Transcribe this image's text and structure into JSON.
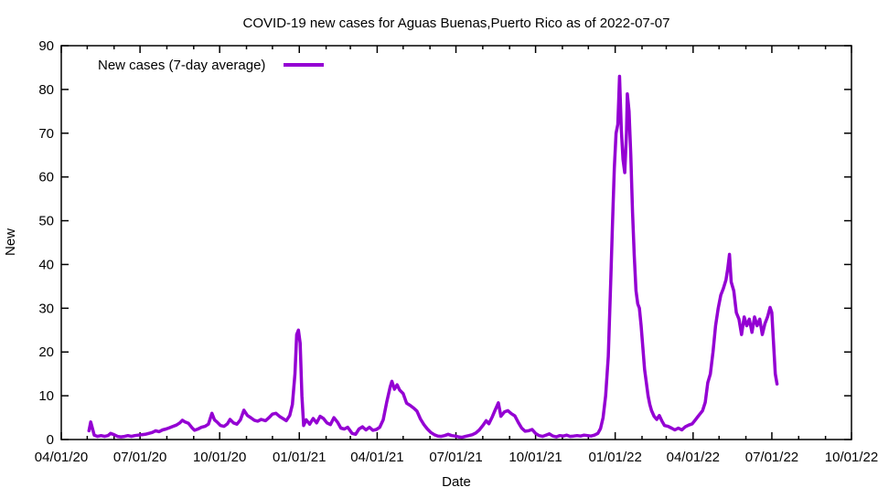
{
  "chart_data": {
    "type": "line",
    "title": "COVID-19 new cases for Aguas Buenas,Puerto Rico as of 2022-07-07",
    "xlabel": "Date",
    "ylabel": "New",
    "xlim": [
      "2020-04-01",
      "2022-10-01"
    ],
    "ylim": [
      0,
      90
    ],
    "grid": false,
    "legend_position": "top-left-inside",
    "x_tick_labels": [
      "04/01/20",
      "07/01/20",
      "10/01/20",
      "01/01/21",
      "04/01/21",
      "07/01/21",
      "10/01/21",
      "01/01/22",
      "04/01/22",
      "07/01/22",
      "10/01/22"
    ],
    "x_tick_dates": [
      "2020-04-01",
      "2020-07-01",
      "2020-10-01",
      "2021-01-01",
      "2021-04-01",
      "2021-07-01",
      "2021-10-01",
      "2022-01-01",
      "2022-04-01",
      "2022-07-01",
      "2022-10-01"
    ],
    "x_minor_tick_unit": "month",
    "y_ticks": [
      0,
      10,
      20,
      30,
      40,
      50,
      60,
      70,
      80,
      90
    ],
    "series": [
      {
        "name": "New cases (7-day average)",
        "color": "#9400D3",
        "points": [
          [
            "2020-05-03",
            2
          ],
          [
            "2020-05-05",
            4
          ],
          [
            "2020-05-07",
            2.5
          ],
          [
            "2020-05-09",
            1
          ],
          [
            "2020-05-13",
            0.7
          ],
          [
            "2020-05-17",
            0.9
          ],
          [
            "2020-05-21",
            0.7
          ],
          [
            "2020-05-25",
            0.9
          ],
          [
            "2020-05-28",
            1.4
          ],
          [
            "2020-06-01",
            1.1
          ],
          [
            "2020-06-05",
            0.7
          ],
          [
            "2020-06-09",
            0.6
          ],
          [
            "2020-06-13",
            0.7
          ],
          [
            "2020-06-17",
            0.9
          ],
          [
            "2020-06-21",
            0.7
          ],
          [
            "2020-06-25",
            0.9
          ],
          [
            "2020-06-29",
            1.0
          ],
          [
            "2020-07-03",
            1.1
          ],
          [
            "2020-07-07",
            1.2
          ],
          [
            "2020-07-11",
            1.4
          ],
          [
            "2020-07-15",
            1.6
          ],
          [
            "2020-07-19",
            2.0
          ],
          [
            "2020-07-23",
            1.8
          ],
          [
            "2020-07-27",
            2.2
          ],
          [
            "2020-07-31",
            2.4
          ],
          [
            "2020-08-04",
            2.7
          ],
          [
            "2020-08-08",
            3.0
          ],
          [
            "2020-08-12",
            3.3
          ],
          [
            "2020-08-16",
            3.8
          ],
          [
            "2020-08-19",
            4.4
          ],
          [
            "2020-08-22",
            4.0
          ],
          [
            "2020-08-26",
            3.7
          ],
          [
            "2020-08-30",
            2.7
          ],
          [
            "2020-09-02",
            2.1
          ],
          [
            "2020-09-06",
            2.4
          ],
          [
            "2020-09-10",
            2.8
          ],
          [
            "2020-09-14",
            3.0
          ],
          [
            "2020-09-18",
            3.5
          ],
          [
            "2020-09-22",
            6.0
          ],
          [
            "2020-09-25",
            4.5
          ],
          [
            "2020-09-28",
            4.0
          ],
          [
            "2020-10-02",
            3.2
          ],
          [
            "2020-10-06",
            3.0
          ],
          [
            "2020-10-10",
            3.6
          ],
          [
            "2020-10-13",
            4.6
          ],
          [
            "2020-10-17",
            3.8
          ],
          [
            "2020-10-21",
            3.5
          ],
          [
            "2020-10-25",
            4.5
          ],
          [
            "2020-10-29",
            6.7
          ],
          [
            "2020-11-02",
            5.5
          ],
          [
            "2020-11-06",
            5.0
          ],
          [
            "2020-11-10",
            4.4
          ],
          [
            "2020-11-14",
            4.2
          ],
          [
            "2020-11-18",
            4.6
          ],
          [
            "2020-11-23",
            4.3
          ],
          [
            "2020-11-27",
            5.0
          ],
          [
            "2020-12-01",
            5.8
          ],
          [
            "2020-12-05",
            6.0
          ],
          [
            "2020-12-09",
            5.3
          ],
          [
            "2020-12-13",
            4.8
          ],
          [
            "2020-12-17",
            4.3
          ],
          [
            "2020-12-21",
            5.5
          ],
          [
            "2020-12-24",
            8
          ],
          [
            "2020-12-27",
            15
          ],
          [
            "2020-12-29",
            24
          ],
          [
            "2020-12-31",
            25
          ],
          [
            "2021-01-02",
            22
          ],
          [
            "2021-01-04",
            10
          ],
          [
            "2021-01-06",
            3.2
          ],
          [
            "2021-01-09",
            4.5
          ],
          [
            "2021-01-13",
            3.5
          ],
          [
            "2021-01-17",
            4.8
          ],
          [
            "2021-01-21",
            3.8
          ],
          [
            "2021-01-25",
            5.3
          ],
          [
            "2021-01-29",
            4.8
          ],
          [
            "2021-02-02",
            3.8
          ],
          [
            "2021-02-06",
            3.4
          ],
          [
            "2021-02-10",
            5.0
          ],
          [
            "2021-02-14",
            4.0
          ],
          [
            "2021-02-18",
            2.6
          ],
          [
            "2021-02-22",
            2.4
          ],
          [
            "2021-02-26",
            2.8
          ],
          [
            "2021-03-03",
            1.4
          ],
          [
            "2021-03-07",
            1.2
          ],
          [
            "2021-03-11",
            2.4
          ],
          [
            "2021-03-15",
            2.9
          ],
          [
            "2021-03-19",
            2.2
          ],
          [
            "2021-03-23",
            2.8
          ],
          [
            "2021-03-27",
            2.1
          ],
          [
            "2021-03-31",
            2.3
          ],
          [
            "2021-04-04",
            2.8
          ],
          [
            "2021-04-08",
            4.5
          ],
          [
            "2021-04-12",
            8.5
          ],
          [
            "2021-04-16",
            12
          ],
          [
            "2021-04-18",
            13.3
          ],
          [
            "2021-04-21",
            11.5
          ],
          [
            "2021-04-24",
            12.5
          ],
          [
            "2021-04-27",
            11.3
          ],
          [
            "2021-05-01",
            10.5
          ],
          [
            "2021-05-05",
            8.3
          ],
          [
            "2021-05-09",
            7.8
          ],
          [
            "2021-05-13",
            7.2
          ],
          [
            "2021-05-17",
            6.5
          ],
          [
            "2021-05-21",
            4.7
          ],
          [
            "2021-05-25",
            3.4
          ],
          [
            "2021-05-29",
            2.4
          ],
          [
            "2021-06-02",
            1.6
          ],
          [
            "2021-06-06",
            1.1
          ],
          [
            "2021-06-10",
            0.8
          ],
          [
            "2021-06-14",
            0.7
          ],
          [
            "2021-06-18",
            0.9
          ],
          [
            "2021-06-22",
            1.2
          ],
          [
            "2021-06-26",
            0.9
          ],
          [
            "2021-06-30",
            0.8
          ],
          [
            "2021-07-04",
            0.6
          ],
          [
            "2021-07-08",
            0.5
          ],
          [
            "2021-07-12",
            0.7
          ],
          [
            "2021-07-16",
            0.9
          ],
          [
            "2021-07-20",
            1.1
          ],
          [
            "2021-07-24",
            1.5
          ],
          [
            "2021-07-28",
            2.2
          ],
          [
            "2021-08-01",
            3.2
          ],
          [
            "2021-08-05",
            4.3
          ],
          [
            "2021-08-08",
            3.6
          ],
          [
            "2021-08-12",
            5.2
          ],
          [
            "2021-08-15",
            6.6
          ],
          [
            "2021-08-19",
            8.4
          ],
          [
            "2021-08-22",
            5.3
          ],
          [
            "2021-08-26",
            6.3
          ],
          [
            "2021-08-30",
            6.6
          ],
          [
            "2021-09-03",
            5.9
          ],
          [
            "2021-09-07",
            5.4
          ],
          [
            "2021-09-11",
            3.9
          ],
          [
            "2021-09-15",
            2.6
          ],
          [
            "2021-09-19",
            1.9
          ],
          [
            "2021-09-23",
            2.0
          ],
          [
            "2021-09-27",
            2.3
          ],
          [
            "2021-10-01",
            1.4
          ],
          [
            "2021-10-05",
            0.9
          ],
          [
            "2021-10-09",
            0.7
          ],
          [
            "2021-10-13",
            1.0
          ],
          [
            "2021-10-17",
            1.3
          ],
          [
            "2021-10-21",
            0.8
          ],
          [
            "2021-10-25",
            0.6
          ],
          [
            "2021-10-29",
            0.9
          ],
          [
            "2021-11-02",
            0.8
          ],
          [
            "2021-11-06",
            1.0
          ],
          [
            "2021-11-10",
            0.7
          ],
          [
            "2021-11-14",
            0.8
          ],
          [
            "2021-11-18",
            0.9
          ],
          [
            "2021-11-22",
            0.8
          ],
          [
            "2021-11-26",
            1.0
          ],
          [
            "2021-11-30",
            0.9
          ],
          [
            "2021-12-04",
            0.8
          ],
          [
            "2021-12-08",
            1.0
          ],
          [
            "2021-12-12",
            1.4
          ],
          [
            "2021-12-15",
            2.5
          ],
          [
            "2021-12-18",
            5
          ],
          [
            "2021-12-21",
            10
          ],
          [
            "2021-12-24",
            19
          ],
          [
            "2021-12-27",
            37
          ],
          [
            "2021-12-29",
            50
          ],
          [
            "2021-12-31",
            62
          ],
          [
            "2022-01-02",
            70
          ],
          [
            "2022-01-04",
            72
          ],
          [
            "2022-01-05",
            77
          ],
          [
            "2022-01-06",
            83
          ],
          [
            "2022-01-08",
            71
          ],
          [
            "2022-01-10",
            64
          ],
          [
            "2022-01-12",
            61
          ],
          [
            "2022-01-14",
            70
          ],
          [
            "2022-01-15",
            79
          ],
          [
            "2022-01-17",
            75
          ],
          [
            "2022-01-19",
            65
          ],
          [
            "2022-01-21",
            52
          ],
          [
            "2022-01-23",
            42
          ],
          [
            "2022-01-25",
            34
          ],
          [
            "2022-01-27",
            31
          ],
          [
            "2022-01-29",
            30
          ],
          [
            "2022-01-31",
            26
          ],
          [
            "2022-02-02",
            21
          ],
          [
            "2022-02-04",
            16
          ],
          [
            "2022-02-06",
            13
          ],
          [
            "2022-02-08",
            10
          ],
          [
            "2022-02-10",
            8
          ],
          [
            "2022-02-12",
            6.6
          ],
          [
            "2022-02-15",
            5.3
          ],
          [
            "2022-02-18",
            4.6
          ],
          [
            "2022-02-21",
            5.5
          ],
          [
            "2022-02-24",
            4.2
          ],
          [
            "2022-02-27",
            3.2
          ],
          [
            "2022-03-03",
            3.0
          ],
          [
            "2022-03-07",
            2.6
          ],
          [
            "2022-03-11",
            2.2
          ],
          [
            "2022-03-15",
            2.6
          ],
          [
            "2022-03-19",
            2.2
          ],
          [
            "2022-03-23",
            2.9
          ],
          [
            "2022-03-27",
            3.3
          ],
          [
            "2022-03-31",
            3.6
          ],
          [
            "2022-04-04",
            4.6
          ],
          [
            "2022-04-08",
            5.6
          ],
          [
            "2022-04-12",
            6.6
          ],
          [
            "2022-04-15",
            8.5
          ],
          [
            "2022-04-18",
            13
          ],
          [
            "2022-04-21",
            15
          ],
          [
            "2022-04-24",
            20
          ],
          [
            "2022-04-27",
            26
          ],
          [
            "2022-04-30",
            30
          ],
          [
            "2022-05-03",
            33
          ],
          [
            "2022-05-06",
            34.5
          ],
          [
            "2022-05-09",
            36.5
          ],
          [
            "2022-05-11",
            39
          ],
          [
            "2022-05-13",
            42.3
          ],
          [
            "2022-05-15",
            36
          ],
          [
            "2022-05-18",
            34
          ],
          [
            "2022-05-21",
            29
          ],
          [
            "2022-05-24",
            27.5
          ],
          [
            "2022-05-27",
            24
          ],
          [
            "2022-05-30",
            28
          ],
          [
            "2022-06-02",
            26
          ],
          [
            "2022-06-05",
            27.5
          ],
          [
            "2022-06-08",
            24.5
          ],
          [
            "2022-06-11",
            28
          ],
          [
            "2022-06-14",
            26
          ],
          [
            "2022-06-17",
            27.5
          ],
          [
            "2022-06-20",
            24
          ],
          [
            "2022-06-23",
            26.5
          ],
          [
            "2022-06-26",
            28
          ],
          [
            "2022-06-29",
            30.2
          ],
          [
            "2022-07-01",
            29
          ],
          [
            "2022-07-03",
            22
          ],
          [
            "2022-07-05",
            15
          ],
          [
            "2022-07-07",
            12.7
          ]
        ]
      }
    ],
    "axis_color": "#000000",
    "background_color": "#ffffff"
  }
}
